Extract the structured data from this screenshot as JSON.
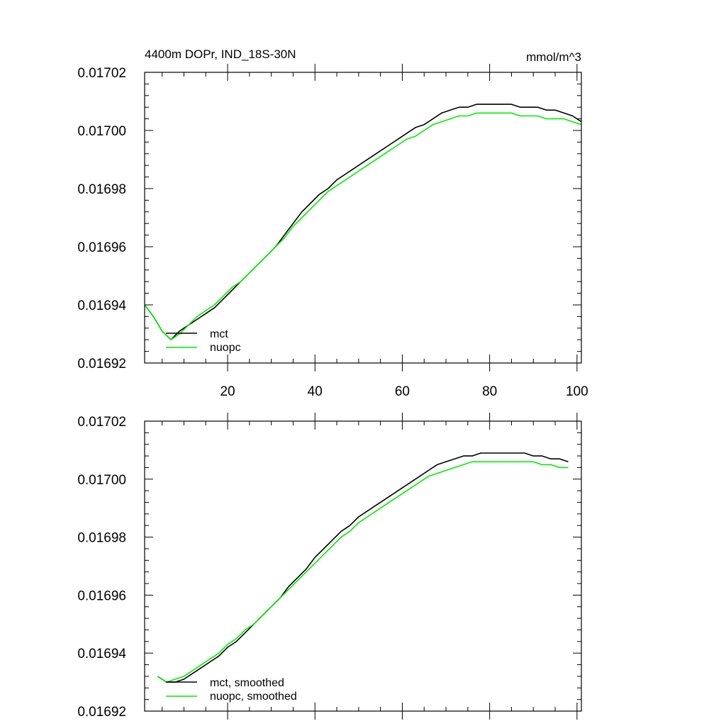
{
  "chart_data": [
    {
      "type": "line",
      "title_left": "4400m DOPr, IND_18S-30N",
      "title_right": "mmol/m^3",
      "xlim": [
        1,
        101
      ],
      "ylim": [
        0.01692,
        0.01702
      ],
      "xticks": [
        20,
        40,
        60,
        80,
        100
      ],
      "xtick_labels": [
        "20",
        "40",
        "60",
        "80",
        "100"
      ],
      "yticks": [
        0.01692,
        0.01694,
        0.01696,
        0.01698,
        0.017,
        0.01702
      ],
      "ytick_labels": [
        "0.01692",
        "0.01694",
        "0.01696",
        "0.01698",
        "0.01700",
        "0.01702"
      ],
      "series": [
        {
          "name": "mct",
          "color": "#000000",
          "x": [
            1,
            3,
            5,
            7,
            9,
            11,
            13,
            15,
            17,
            19,
            21,
            23,
            25,
            27,
            29,
            31,
            33,
            35,
            37,
            39,
            41,
            43,
            45,
            47,
            49,
            51,
            53,
            55,
            57,
            59,
            61,
            63,
            65,
            67,
            69,
            71,
            73,
            75,
            77,
            79,
            81,
            83,
            85,
            87,
            89,
            91,
            93,
            95,
            97,
            99,
            101
          ],
          "values": [
            0.01694,
            0.016936,
            0.016931,
            0.016928,
            0.016931,
            0.016933,
            0.016935,
            0.016937,
            0.016939,
            0.016942,
            0.016945,
            0.016948,
            0.016951,
            0.016954,
            0.016957,
            0.01696,
            0.016964,
            0.016968,
            0.016972,
            0.016975,
            0.016978,
            0.01698,
            0.016983,
            0.016985,
            0.016987,
            0.016989,
            0.016991,
            0.016993,
            0.016995,
            0.016997,
            0.016999,
            0.017001,
            0.017002,
            0.017004,
            0.017006,
            0.017007,
            0.017008,
            0.017008,
            0.017009,
            0.017009,
            0.017009,
            0.017009,
            0.017009,
            0.017008,
            0.017008,
            0.017008,
            0.017007,
            0.017007,
            0.017006,
            0.017005,
            0.017003
          ]
        },
        {
          "name": "nuopc",
          "color": "#00ee00",
          "x": [
            1,
            3,
            5,
            7,
            9,
            11,
            13,
            15,
            17,
            19,
            21,
            23,
            25,
            27,
            29,
            31,
            33,
            35,
            37,
            39,
            41,
            43,
            45,
            47,
            49,
            51,
            53,
            55,
            57,
            59,
            61,
            63,
            65,
            67,
            69,
            71,
            73,
            75,
            77,
            79,
            81,
            83,
            85,
            87,
            89,
            91,
            93,
            95,
            97,
            99,
            101
          ],
          "values": [
            0.01694,
            0.016936,
            0.016931,
            0.016928,
            0.01693,
            0.016933,
            0.016936,
            0.016938,
            0.01694,
            0.016943,
            0.016946,
            0.016948,
            0.016951,
            0.016954,
            0.016957,
            0.01696,
            0.016963,
            0.016967,
            0.01697,
            0.016973,
            0.016976,
            0.016979,
            0.016981,
            0.016983,
            0.016985,
            0.016987,
            0.016989,
            0.016991,
            0.016993,
            0.016995,
            0.016997,
            0.016998,
            0.017,
            0.017002,
            0.017003,
            0.017004,
            0.017005,
            0.017005,
            0.017006,
            0.017006,
            0.017006,
            0.017006,
            0.017006,
            0.017005,
            0.017005,
            0.017005,
            0.017004,
            0.017004,
            0.017004,
            0.017003,
            0.017002
          ]
        }
      ],
      "legend": [
        "mct",
        "nuopc"
      ],
      "legend_placement": "lower-left"
    },
    {
      "type": "line",
      "xlim": [
        1,
        101
      ],
      "ylim": [
        0.01692,
        0.01702
      ],
      "xticks": [
        20,
        40,
        60,
        80,
        100
      ],
      "yticks": [
        0.01692,
        0.01694,
        0.01696,
        0.01698,
        0.017,
        0.01702
      ],
      "ytick_labels": [
        "0.01692",
        "0.01694",
        "0.01696",
        "0.01698",
        "0.01700",
        "0.01702"
      ],
      "series": [
        {
          "name": "mct, smoothed",
          "color": "#000000",
          "x": [
            4,
            6,
            8,
            10,
            12,
            14,
            16,
            18,
            20,
            22,
            24,
            26,
            28,
            30,
            32,
            34,
            36,
            38,
            40,
            42,
            44,
            46,
            48,
            50,
            52,
            54,
            56,
            58,
            60,
            62,
            64,
            66,
            68,
            70,
            72,
            74,
            76,
            78,
            80,
            82,
            84,
            86,
            88,
            90,
            92,
            94,
            96,
            98
          ],
          "values": [
            0.016932,
            0.01693,
            0.01693,
            0.016931,
            0.016933,
            0.016935,
            0.016937,
            0.016939,
            0.016942,
            0.016944,
            0.016947,
            0.01695,
            0.016953,
            0.016956,
            0.016959,
            0.016963,
            0.016966,
            0.016969,
            0.016973,
            0.016976,
            0.016979,
            0.016982,
            0.016984,
            0.016987,
            0.016989,
            0.016991,
            0.016993,
            0.016995,
            0.016997,
            0.016999,
            0.017001,
            0.017003,
            0.017005,
            0.017006,
            0.017007,
            0.017008,
            0.017008,
            0.017009,
            0.017009,
            0.017009,
            0.017009,
            0.017009,
            0.017009,
            0.017008,
            0.017008,
            0.017007,
            0.017007,
            0.017006
          ]
        },
        {
          "name": "nuopc, smoothed",
          "color": "#00ee00",
          "x": [
            4,
            6,
            8,
            10,
            12,
            14,
            16,
            18,
            20,
            22,
            24,
            26,
            28,
            30,
            32,
            34,
            36,
            38,
            40,
            42,
            44,
            46,
            48,
            50,
            52,
            54,
            56,
            58,
            60,
            62,
            64,
            66,
            68,
            70,
            72,
            74,
            76,
            78,
            80,
            82,
            84,
            86,
            88,
            90,
            92,
            94,
            96,
            98
          ],
          "values": [
            0.016932,
            0.01693,
            0.016931,
            0.016932,
            0.016934,
            0.016936,
            0.016938,
            0.01694,
            0.016943,
            0.016945,
            0.016948,
            0.01695,
            0.016953,
            0.016956,
            0.016959,
            0.016962,
            0.016965,
            0.016968,
            0.016971,
            0.016974,
            0.016977,
            0.01698,
            0.016982,
            0.016985,
            0.016987,
            0.016989,
            0.016991,
            0.016993,
            0.016995,
            0.016997,
            0.016999,
            0.017001,
            0.017002,
            0.017003,
            0.017004,
            0.017005,
            0.017006,
            0.017006,
            0.017006,
            0.017006,
            0.017006,
            0.017006,
            0.017006,
            0.017006,
            0.017005,
            0.017005,
            0.017004,
            0.017004
          ]
        }
      ],
      "legend": [
        "mct, smoothed",
        "nuopc, smoothed"
      ],
      "legend_placement": "lower-left"
    }
  ]
}
